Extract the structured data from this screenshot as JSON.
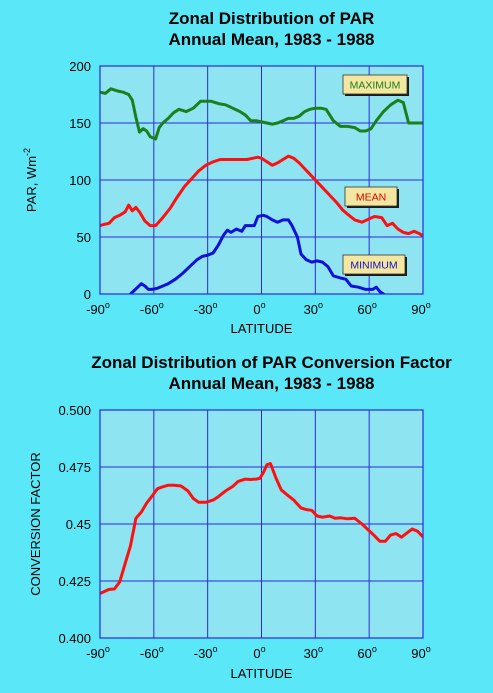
{
  "chart_data": [
    {
      "type": "line",
      "title": "Zonal Distribution of PAR",
      "subtitle": "Annual Mean, 1983 - 1988",
      "xlabel": "LATITUDE",
      "ylabel": "PAR, Wm",
      "ylabel_sup": "-2",
      "xlim": [
        -90,
        90
      ],
      "ylim": [
        0,
        200
      ],
      "x_ticks": [
        -90,
        -60,
        -30,
        0,
        30,
        60,
        90
      ],
      "x_tick_labels": [
        "-90",
        "-60",
        "-30",
        "0",
        "30",
        "60",
        "90"
      ],
      "degree_suffix": "o",
      "y_ticks": [
        0,
        50,
        100,
        150,
        200
      ],
      "y_tick_labels": [
        "0",
        "50",
        "100",
        "150",
        "200"
      ],
      "grid": true,
      "series": [
        {
          "name": "MAXIMUM",
          "color": "#1b7f1b",
          "label_color": "#1b7f1b",
          "x": [
            -90,
            -87,
            -84,
            -80,
            -77,
            -74,
            -72,
            -70,
            -68,
            -66,
            -64,
            -62,
            -59,
            -57,
            -55,
            -52,
            -49,
            -46,
            -42,
            -38,
            -34,
            -31,
            -28,
            -24,
            -20,
            -16,
            -12,
            -9,
            -6,
            -3,
            0,
            3,
            6,
            9,
            12,
            15,
            18,
            21,
            24,
            27,
            30,
            33,
            36,
            40,
            44,
            48,
            52,
            55,
            58,
            61,
            64,
            68,
            72,
            76,
            79,
            82,
            85,
            88,
            90
          ],
          "y": [
            177,
            176,
            180,
            178,
            177,
            175,
            170,
            155,
            142,
            145,
            143,
            138,
            136,
            146,
            150,
            154,
            159,
            162,
            160,
            163,
            169,
            169,
            169,
            167,
            166,
            163,
            160,
            157,
            152,
            152,
            151,
            150,
            149,
            150,
            152,
            154,
            154,
            156,
            160,
            162,
            163,
            163,
            162,
            152,
            147,
            147,
            146,
            143,
            143,
            145,
            152,
            160,
            166,
            170,
            168,
            150,
            150,
            150,
            150
          ]
        },
        {
          "name": "MEAN",
          "color": "#ff1010",
          "label_color": "#e00000",
          "x": [
            -90,
            -88,
            -85,
            -82,
            -79,
            -76,
            -74,
            -72,
            -70,
            -68,
            -65,
            -62,
            -59,
            -55,
            -51,
            -47,
            -43,
            -39,
            -35,
            -31,
            -27,
            -23,
            -19,
            -15,
            -11,
            -8,
            -5,
            -2,
            0,
            3,
            6,
            9,
            12,
            15,
            18,
            21,
            24,
            27,
            30,
            33,
            36,
            39,
            42,
            45,
            48,
            52,
            56,
            60,
            63,
            67,
            70,
            73,
            76,
            79,
            82,
            85,
            88,
            90
          ],
          "y": [
            60,
            61,
            62,
            67,
            69,
            72,
            78,
            73,
            76,
            72,
            64,
            60,
            60,
            67,
            75,
            85,
            94,
            101,
            108,
            113,
            116,
            118,
            118,
            118,
            118,
            118,
            119,
            120,
            119,
            116,
            113,
            115,
            118,
            121,
            119,
            115,
            110,
            105,
            100,
            95,
            90,
            85,
            80,
            74,
            70,
            65,
            63,
            66,
            68,
            67,
            60,
            62,
            57,
            54,
            53,
            55,
            53,
            51
          ]
        },
        {
          "name": "MINIMUM",
          "color": "#1010d8",
          "label_color": "#1010c8",
          "x": [
            -73,
            -71,
            -69,
            -67,
            -65,
            -63,
            -61,
            -58,
            -55,
            -52,
            -48,
            -44,
            -40,
            -36,
            -33,
            -30,
            -27,
            -24,
            -21,
            -19,
            -17,
            -14,
            -11,
            -9,
            -6,
            -4,
            -2,
            1,
            3,
            6,
            9,
            12,
            15,
            17,
            20,
            22,
            25,
            28,
            31,
            34,
            37,
            40,
            44,
            47,
            50,
            54,
            58,
            62,
            64,
            66,
            68
          ],
          "y": [
            0,
            3,
            6,
            9,
            7,
            4,
            4,
            5,
            7,
            9,
            13,
            18,
            24,
            30,
            33,
            34,
            36,
            43,
            52,
            56,
            54,
            57,
            55,
            60,
            60,
            60,
            68,
            69,
            68,
            65,
            63,
            65,
            65,
            60,
            50,
            35,
            30,
            28,
            29,
            28,
            24,
            16,
            14,
            13,
            7,
            6,
            4,
            4,
            6,
            2,
            0
          ]
        }
      ]
    },
    {
      "type": "line",
      "title": "Zonal Distribution of PAR Conversion Factor",
      "subtitle": "Annual Mean, 1983 - 1988",
      "xlabel": "LATITUDE",
      "ylabel": "CONVERSION FACTOR",
      "xlim": [
        -90,
        90
      ],
      "ylim": [
        0.4,
        0.5
      ],
      "x_ticks": [
        -90,
        -60,
        -30,
        0,
        30,
        60,
        90
      ],
      "x_tick_labels": [
        "-90",
        "-60",
        "-30",
        "0",
        "30",
        "60",
        "90"
      ],
      "degree_suffix": "o",
      "y_ticks": [
        0.4,
        0.425,
        0.45,
        0.475,
        0.5
      ],
      "y_tick_labels": [
        "0.400",
        "0.425",
        "0.45",
        "0.475",
        "0.500"
      ],
      "grid": true,
      "series": [
        {
          "color": "#ff1010",
          "x": [
            -90,
            -88,
            -85,
            -82,
            -79,
            -76,
            -73,
            -70,
            -67,
            -64,
            -61,
            -58,
            -55,
            -52,
            -49,
            -45,
            -41,
            -38,
            -35,
            -31,
            -27,
            -24,
            -20,
            -16,
            -13,
            -9,
            -6,
            -3,
            -1,
            1,
            3,
            5,
            8,
            11,
            14,
            18,
            22,
            25,
            28,
            31,
            34,
            38,
            41,
            44,
            48,
            52,
            56,
            60,
            63,
            66,
            69,
            72,
            75,
            78,
            81,
            84,
            87,
            90
          ],
          "y": [
            0.4195,
            0.4202,
            0.4213,
            0.4215,
            0.4246,
            0.4326,
            0.4405,
            0.4525,
            0.4552,
            0.4592,
            0.4622,
            0.4655,
            0.4663,
            0.467,
            0.467,
            0.4667,
            0.4645,
            0.4612,
            0.4595,
            0.4595,
            0.4605,
            0.462,
            0.4645,
            0.4665,
            0.4687,
            0.4697,
            0.4695,
            0.4697,
            0.47,
            0.4725,
            0.476,
            0.4765,
            0.4702,
            0.465,
            0.463,
            0.4605,
            0.457,
            0.4563,
            0.456,
            0.4535,
            0.453,
            0.4535,
            0.4525,
            0.4527,
            0.4523,
            0.4525,
            0.45,
            0.447,
            0.4448,
            0.4424,
            0.4424,
            0.4452,
            0.4458,
            0.4442,
            0.446,
            0.4478,
            0.4468,
            0.4444
          ]
        }
      ]
    }
  ],
  "annotations": {
    "maximum_label": "MAXIMUM",
    "mean_label": "MEAN",
    "minimum_label": "MINIMUM"
  }
}
